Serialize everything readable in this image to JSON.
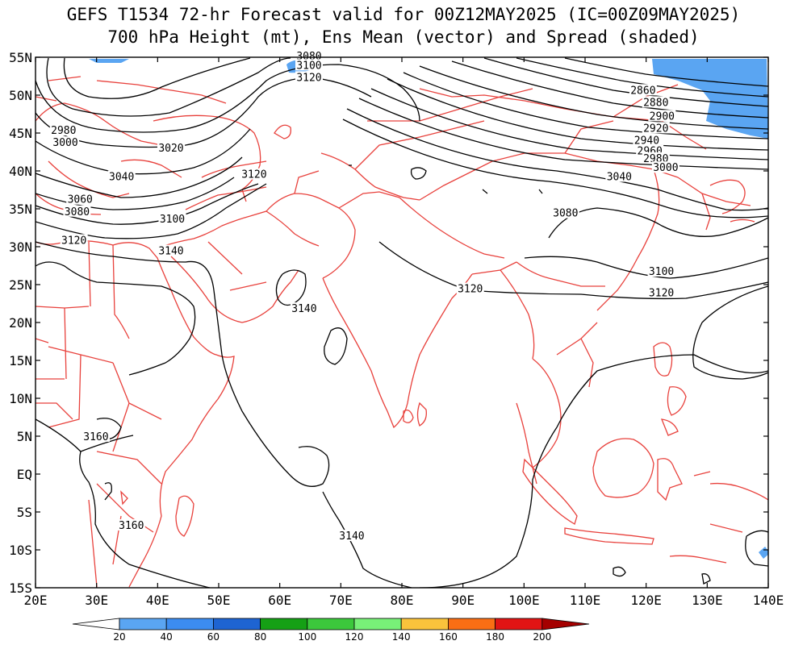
{
  "title_line1": "GEFS T1534 72-hr Forecast valid for 00Z12MAY2025 (IC=00Z09MAY2025)",
  "title_line2": "700 hPa Height (mt), Ens Mean (vector) and Spread (shaded)",
  "lat_labels": [
    "55N",
    "50N",
    "45N",
    "40N",
    "35N",
    "30N",
    "25N",
    "20N",
    "15N",
    "10N",
    "5N",
    "EQ",
    "5S",
    "10S",
    "15S"
  ],
  "lon_labels": [
    "20E",
    "30E",
    "40E",
    "50E",
    "60E",
    "70E",
    "80E",
    "90E",
    "100E",
    "110E",
    "120E",
    "130E",
    "140E"
  ],
  "contour_labels": [
    {
      "text": "2860",
      "lon": 119.5,
      "lat": 50.6
    },
    {
      "text": "2880",
      "lon": 121.6,
      "lat": 49.0
    },
    {
      "text": "2900",
      "lon": 122.6,
      "lat": 47.2
    },
    {
      "text": "2920",
      "lon": 121.6,
      "lat": 45.6
    },
    {
      "text": "2940",
      "lon": 120.1,
      "lat": 44.0
    },
    {
      "text": "2960",
      "lon": 120.6,
      "lat": 42.6
    },
    {
      "text": "2980",
      "lon": 121.6,
      "lat": 41.6
    },
    {
      "text": "3000",
      "lon": 123.2,
      "lat": 40.4
    },
    {
      "text": "3040",
      "lon": 115.6,
      "lat": 39.2
    },
    {
      "text": "3080",
      "lon": 106.8,
      "lat": 34.4
    },
    {
      "text": "3100",
      "lon": 122.5,
      "lat": 26.7
    },
    {
      "text": "3120",
      "lon": 122.5,
      "lat": 23.9
    },
    {
      "text": "3120",
      "lon": 91.2,
      "lat": 24.4
    },
    {
      "text": "3080",
      "lon": 64.8,
      "lat": 55.1
    },
    {
      "text": "3100",
      "lon": 64.8,
      "lat": 53.9
    },
    {
      "text": "3120",
      "lon": 64.8,
      "lat": 52.3
    },
    {
      "text": "3020",
      "lon": 42.2,
      "lat": 43.0
    },
    {
      "text": "3120",
      "lon": 55.8,
      "lat": 39.5
    },
    {
      "text": "2980",
      "lon": 24.6,
      "lat": 45.3
    },
    {
      "text": "3000",
      "lon": 24.9,
      "lat": 43.7
    },
    {
      "text": "3040",
      "lon": 34.1,
      "lat": 39.2
    },
    {
      "text": "3060",
      "lon": 27.3,
      "lat": 36.2
    },
    {
      "text": "3080",
      "lon": 26.8,
      "lat": 34.6
    },
    {
      "text": "3100",
      "lon": 42.4,
      "lat": 33.6
    },
    {
      "text": "3120",
      "lon": 26.3,
      "lat": 30.8
    },
    {
      "text": "3140",
      "lon": 42.2,
      "lat": 29.4
    },
    {
      "text": "3140",
      "lon": 64.0,
      "lat": 21.8
    },
    {
      "text": "3160",
      "lon": 29.9,
      "lat": 4.9
    },
    {
      "text": "3160",
      "lon": 35.7,
      "lat": -6.8
    },
    {
      "text": "3140",
      "lon": 71.8,
      "lat": -8.2
    }
  ],
  "colorbar": {
    "labels": [
      "20",
      "40",
      "60",
      "80",
      "100",
      "120",
      "140",
      "160",
      "180",
      "200"
    ],
    "colors": [
      "#5aa5f2",
      "#3c8cf0",
      "#1e64d2",
      "#15a015",
      "#3cc83c",
      "#78f078",
      "#fac33c",
      "#fa6e14",
      "#e11414",
      "#a50000"
    ],
    "low_color": "#ffffff",
    "high_color": "#a50000"
  }
}
